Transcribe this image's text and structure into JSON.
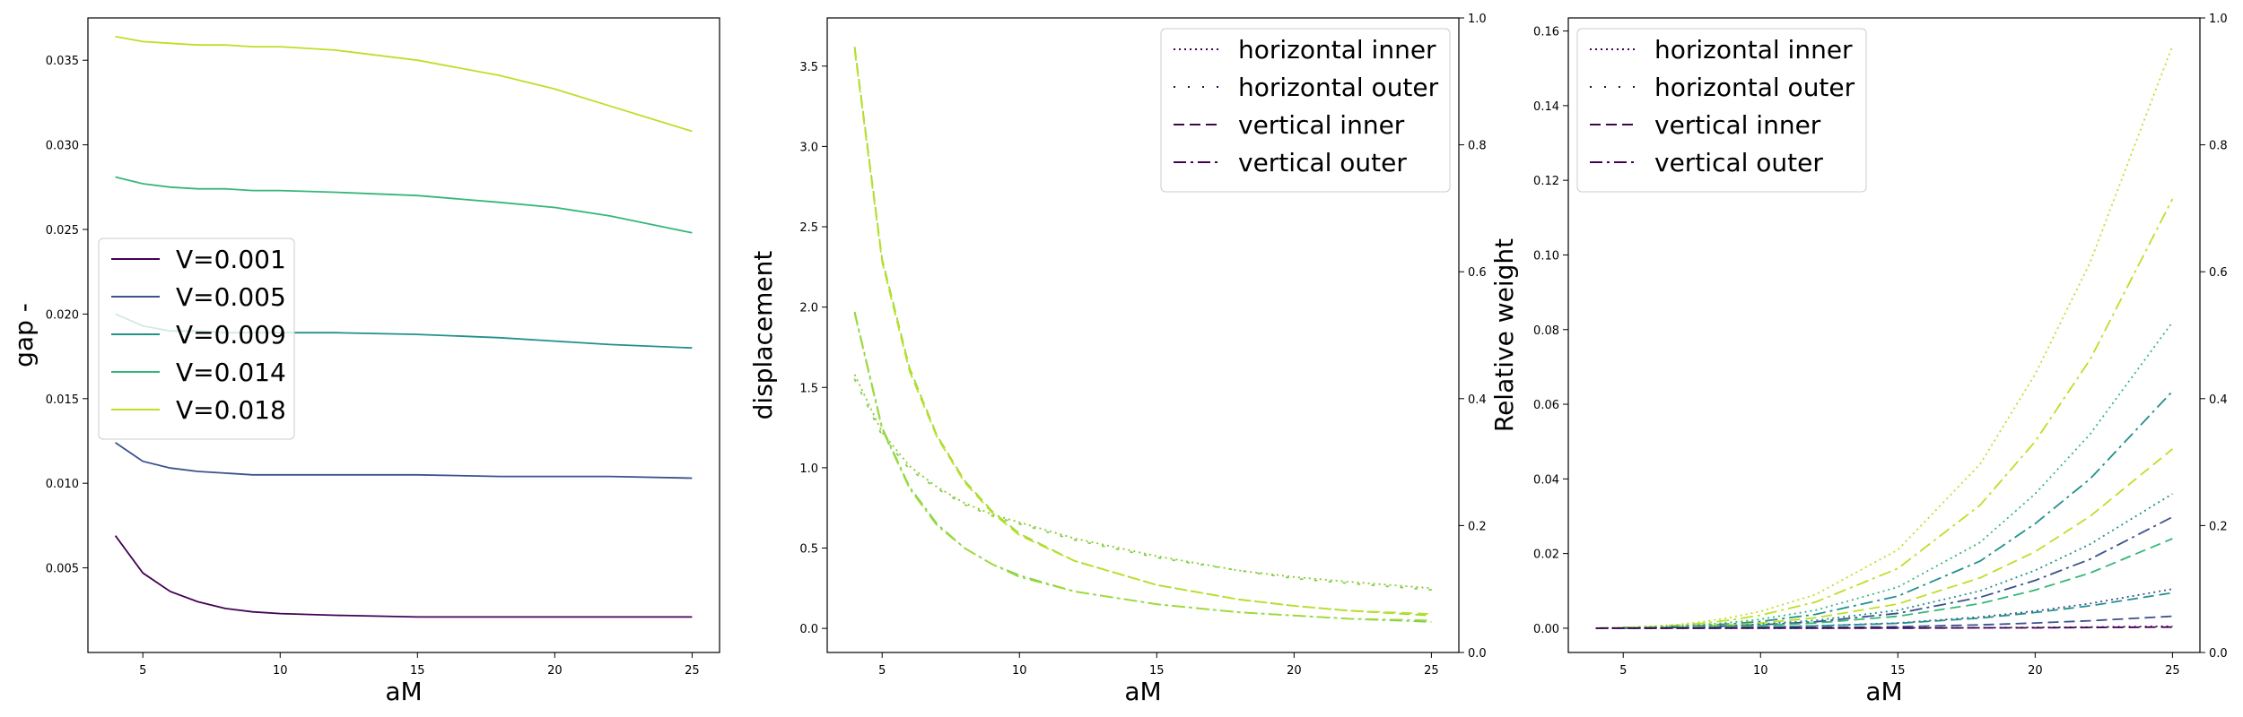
{
  "chart_data": [
    {
      "type": "line",
      "xlabel": "aM",
      "ylabel": "gap -",
      "xlim": [
        3,
        26
      ],
      "ylim": [
        0.0,
        0.0375
      ],
      "xticks": [
        5,
        10,
        15,
        20,
        25
      ],
      "yticks": [
        0.005,
        0.01,
        0.015,
        0.02,
        0.025,
        0.03,
        0.035
      ],
      "ytick_labels": [
        "0.005",
        "0.010",
        "0.015",
        "0.020",
        "0.025",
        "0.030",
        "0.035"
      ],
      "legend_position": "center-left",
      "x": [
        4,
        5,
        6,
        7,
        8,
        9,
        10,
        12,
        15,
        18,
        20,
        22,
        25
      ],
      "series": [
        {
          "name": "V=0.001",
          "color": "#440154",
          "values": [
            0.0069,
            0.0047,
            0.0036,
            0.003,
            0.0026,
            0.0024,
            0.0023,
            0.0022,
            0.0021,
            0.0021,
            0.0021,
            0.0021,
            0.0021
          ]
        },
        {
          "name": "V=0.005",
          "color": "#3b528b",
          "values": [
            0.0124,
            0.0113,
            0.0109,
            0.0107,
            0.0106,
            0.0105,
            0.0105,
            0.0105,
            0.0105,
            0.0104,
            0.0104,
            0.0104,
            0.0103
          ]
        },
        {
          "name": "V=0.009",
          "color": "#21918c",
          "values": [
            0.02,
            0.0193,
            0.019,
            0.019,
            0.0189,
            0.0189,
            0.0189,
            0.0189,
            0.0188,
            0.0186,
            0.0184,
            0.0182,
            0.018
          ]
        },
        {
          "name": "V=0.014",
          "color": "#35b779",
          "values": [
            0.0281,
            0.0277,
            0.0275,
            0.0274,
            0.0274,
            0.0273,
            0.0273,
            0.0272,
            0.027,
            0.0266,
            0.0263,
            0.0258,
            0.0248
          ]
        },
        {
          "name": "V=0.018",
          "color": "#bddf26",
          "values": [
            0.0364,
            0.0361,
            0.036,
            0.0359,
            0.0359,
            0.0358,
            0.0358,
            0.0356,
            0.035,
            0.0341,
            0.0333,
            0.0323,
            0.0308
          ]
        }
      ]
    },
    {
      "type": "line",
      "xlabel": "aM",
      "ylabel": "displacement",
      "xlim": [
        3,
        26
      ],
      "ylim": [
        -0.15,
        3.8
      ],
      "xticks": [
        5,
        10,
        15,
        20,
        25
      ],
      "yticks": [
        0.0,
        0.5,
        1.0,
        1.5,
        2.0,
        2.5,
        3.0,
        3.5
      ],
      "ytick_labels": [
        "0.0",
        "0.5",
        "1.0",
        "1.5",
        "2.0",
        "2.5",
        "3.0",
        "3.5"
      ],
      "right_ylim": [
        0.0,
        1.0
      ],
      "right_yticks": [
        0.0,
        0.2,
        0.4,
        0.6,
        0.8,
        1.0
      ],
      "right_ytick_labels": [
        "0.0",
        "0.2",
        "0.4",
        "0.6",
        "0.8",
        "1.0"
      ],
      "legend_position": "upper-right",
      "legend": [
        {
          "label": "horizontal inner",
          "style": "dotted"
        },
        {
          "label": "horizontal outer",
          "style": "sparse-dotted"
        },
        {
          "label": "vertical inner",
          "style": "dashed"
        },
        {
          "label": "vertical outer",
          "style": "dashdot"
        }
      ],
      "legend_color": "#440154",
      "x": [
        4,
        5,
        6,
        7,
        8,
        9,
        10,
        12,
        15,
        18,
        20,
        22,
        25
      ],
      "series": [
        {
          "name": "horizontal inner",
          "style": "dotted",
          "color": "#8ac926",
          "values": [
            1.58,
            1.22,
            1.01,
            0.88,
            0.78,
            0.71,
            0.66,
            0.56,
            0.45,
            0.36,
            0.32,
            0.29,
            0.25
          ]
        },
        {
          "name": "horizontal outer",
          "style": "sparse-dotted",
          "color": "#7ad151",
          "values": [
            1.55,
            1.2,
            0.99,
            0.87,
            0.77,
            0.7,
            0.65,
            0.55,
            0.44,
            0.36,
            0.31,
            0.28,
            0.24
          ]
        },
        {
          "name": "vertical inner",
          "style": "dashed",
          "color": "#9bd93c",
          "values": [
            3.62,
            2.3,
            1.62,
            1.2,
            0.92,
            0.73,
            0.59,
            0.42,
            0.27,
            0.18,
            0.14,
            0.11,
            0.08
          ]
        },
        {
          "name": "vertical outer",
          "style": "dashdot",
          "color": "#7ad151",
          "values": [
            1.97,
            1.25,
            0.88,
            0.65,
            0.5,
            0.4,
            0.33,
            0.23,
            0.15,
            0.1,
            0.08,
            0.06,
            0.04
          ]
        },
        {
          "name": "vertical inner (set 2)",
          "style": "dashed",
          "color": "#bddf26",
          "values": [
            3.6,
            2.28,
            1.6,
            1.19,
            0.91,
            0.72,
            0.58,
            0.42,
            0.27,
            0.18,
            0.14,
            0.11,
            0.09
          ]
        },
        {
          "name": "vertical outer (set 2)",
          "style": "dashdot",
          "color": "#a0da39",
          "values": [
            1.96,
            1.24,
            0.87,
            0.64,
            0.5,
            0.4,
            0.32,
            0.23,
            0.15,
            0.1,
            0.08,
            0.06,
            0.05
          ]
        }
      ]
    },
    {
      "type": "line",
      "xlabel": "aM",
      "ylabel": "Relative weight",
      "xlim": [
        3,
        26
      ],
      "ylim": [
        -0.0065,
        0.1635
      ],
      "xticks": [
        5,
        10,
        15,
        20,
        25
      ],
      "yticks": [
        0.0,
        0.02,
        0.04,
        0.06,
        0.08,
        0.1,
        0.12,
        0.14,
        0.16
      ],
      "ytick_labels": [
        "0.00",
        "0.02",
        "0.04",
        "0.06",
        "0.08",
        "0.10",
        "0.12",
        "0.14",
        "0.16"
      ],
      "right_ylim": [
        0.0,
        1.0
      ],
      "right_yticks": [
        0.0,
        0.2,
        0.4,
        0.6,
        0.8,
        1.0
      ],
      "right_ytick_labels": [
        "0.0",
        "0.2",
        "0.4",
        "0.6",
        "0.8",
        "1.0"
      ],
      "legend_position": "upper-left",
      "legend": [
        {
          "label": "horizontal inner",
          "style": "dotted"
        },
        {
          "label": "horizontal outer",
          "style": "sparse-dotted"
        },
        {
          "label": "vertical inner",
          "style": "dashed"
        },
        {
          "label": "vertical outer",
          "style": "dashdot"
        }
      ],
      "legend_color": "#440154",
      "x": [
        4,
        5,
        6,
        7,
        8,
        9,
        10,
        12,
        15,
        18,
        20,
        22,
        25
      ],
      "series": [
        {
          "name": "V=0.018 horizontal inner",
          "style": "dotted",
          "color": "#bddf26",
          "values": [
            0.0,
            0.0002,
            0.0005,
            0.001,
            0.0018,
            0.003,
            0.0045,
            0.009,
            0.021,
            0.044,
            0.068,
            0.098,
            0.156
          ]
        },
        {
          "name": "V=0.018 vertical outer",
          "style": "dashdot",
          "color": "#bddf26",
          "values": [
            0.0,
            0.0002,
            0.0004,
            0.0008,
            0.0014,
            0.0023,
            0.0035,
            0.007,
            0.016,
            0.033,
            0.05,
            0.072,
            0.115
          ]
        },
        {
          "name": "V=0.014 horizontal inner",
          "style": "dotted",
          "color": "#35b779",
          "values": [
            0.0,
            0.0001,
            0.0003,
            0.0006,
            0.001,
            0.0016,
            0.0024,
            0.0048,
            0.011,
            0.023,
            0.036,
            0.052,
            0.082
          ]
        },
        {
          "name": "V=0.014 vertical outer",
          "style": "dashdot",
          "color": "#21918c",
          "values": [
            0.0,
            0.0001,
            0.0002,
            0.0004,
            0.0008,
            0.0012,
            0.0018,
            0.0037,
            0.0086,
            0.018,
            0.028,
            0.04,
            0.0635
          ]
        },
        {
          "name": "V=0.018 vertical inner",
          "style": "dashed",
          "color": "#bddf26",
          "values": [
            0.0,
            0.0001,
            0.0002,
            0.0003,
            0.0006,
            0.0009,
            0.0014,
            0.0028,
            0.0065,
            0.0135,
            0.0205,
            0.03,
            0.048
          ]
        },
        {
          "name": "V=0.009 horizontal inner",
          "style": "dotted",
          "color": "#21918c",
          "values": [
            0.0,
            0.0001,
            0.0002,
            0.0003,
            0.0005,
            0.0007,
            0.0011,
            0.0021,
            0.0048,
            0.01,
            0.0155,
            0.0225,
            0.036
          ]
        },
        {
          "name": "V=0.009 vertical outer",
          "style": "dashdot",
          "color": "#3b528b",
          "values": [
            0.0,
            0.0,
            0.0001,
            0.0002,
            0.0004,
            0.0006,
            0.0009,
            0.0017,
            0.004,
            0.0083,
            0.0128,
            0.0185,
            0.0298
          ]
        },
        {
          "name": "V=0.014 vertical inner",
          "style": "dashed",
          "color": "#35b779",
          "values": [
            0.0,
            0.0,
            0.0001,
            0.0002,
            0.0003,
            0.0005,
            0.0007,
            0.0014,
            0.0032,
            0.0066,
            0.0102,
            0.0148,
            0.024
          ]
        },
        {
          "name": "V=0.005 horizontal inner",
          "style": "dotted",
          "color": "#3b528b",
          "values": [
            0.0,
            0.0,
            0.0,
            0.0001,
            0.0001,
            0.0002,
            0.0003,
            0.0006,
            0.0014,
            0.003,
            0.0046,
            0.0066,
            0.0105
          ]
        },
        {
          "name": "V=0.009 vertical inner",
          "style": "dashed",
          "color": "#21918c",
          "values": [
            0.0,
            0.0,
            0.0,
            0.0001,
            0.0001,
            0.0002,
            0.0003,
            0.0006,
            0.0013,
            0.0027,
            0.0042,
            0.006,
            0.0095
          ]
        },
        {
          "name": "V=0.005 vertical inner",
          "style": "dashed",
          "color": "#3b528b",
          "values": [
            0.0,
            0.0,
            0.0,
            0.0,
            0.0,
            0.0001,
            0.0001,
            0.0002,
            0.0004,
            0.0009,
            0.0014,
            0.002,
            0.0032
          ]
        },
        {
          "name": "V=0.001 horizontal inner",
          "style": "dotted",
          "color": "#440154",
          "values": [
            0.0,
            0.0,
            0.0,
            0.0,
            0.0,
            0.0,
            0.0,
            0.0,
            0.0001,
            0.0001,
            0.0002,
            0.0003,
            0.0005
          ]
        },
        {
          "name": "V=0.001 vertical inner",
          "style": "dashed",
          "color": "#440154",
          "values": [
            0.0,
            0.0,
            0.0,
            0.0,
            0.0,
            0.0,
            0.0,
            0.0,
            0.0,
            0.0001,
            0.0001,
            0.0002,
            0.0003
          ]
        }
      ]
    }
  ]
}
